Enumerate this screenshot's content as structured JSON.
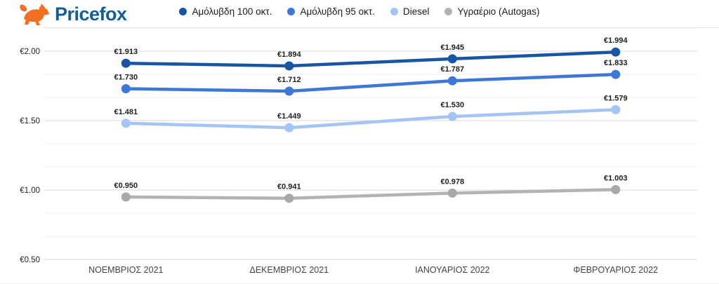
{
  "brand": {
    "name": "Pricefox",
    "name_color": "#135e96",
    "fox_color": "#f36f21"
  },
  "chart_data": {
    "type": "line",
    "categories": [
      "ΝΟΕΜΒΡΙΟΣ 2021",
      "ΔΕΚΕΜΒΡΙΟΣ 2021",
      "ΙΑΝΟΥΑΡΙΟΣ 2022",
      "ΦΕΒΡΟΥΑΡΙΟΣ 2022"
    ],
    "series": [
      {
        "name": "Αμόλυβδη 100 οκτ.",
        "color": "#1855a5",
        "values": [
          1.913,
          1.894,
          1.945,
          1.994
        ],
        "point_labels": [
          "€1.913",
          "€1.894",
          "€1.945",
          "€1.994"
        ]
      },
      {
        "name": "Αμόλυβδη 95 οκτ.",
        "color": "#3d78d8",
        "values": [
          1.73,
          1.712,
          1.787,
          1.833
        ],
        "point_labels": [
          "€1.730",
          "€1.712",
          "€1.787",
          "€1.833"
        ]
      },
      {
        "name": "Diesel",
        "color": "#a4c4f3",
        "values": [
          1.481,
          1.449,
          1.53,
          1.579
        ],
        "point_labels": [
          "€1.481",
          "€1.449",
          "€1.530",
          "€1.579"
        ]
      },
      {
        "name": "Υγραέριο (Autogas)",
        "color": "#b3b3b3",
        "dot_color": "#a8a8a8",
        "values": [
          0.95,
          0.941,
          0.978,
          1.003
        ],
        "point_labels": [
          "€0.950",
          "€0.941",
          "€0.978",
          "€1.003"
        ]
      }
    ],
    "y_ticks": [
      {
        "value": 2.0,
        "label": "€2.00"
      },
      {
        "value": 1.5,
        "label": "€1.50"
      },
      {
        "value": 1.0,
        "label": "€1.00"
      },
      {
        "value": 0.5,
        "label": "€0.50"
      }
    ],
    "y_axis": {
      "min": 0.5,
      "max": 2.1667,
      "gridline_step": 0.1667
    },
    "grid": true,
    "legend_position": "top",
    "currency_prefix": "€",
    "colors": {
      "major_gridline": "#d9d9d9",
      "minor_gridline": "#ececec",
      "point_label_text": "#1f1f1f",
      "y_tick_text": "#222222",
      "x_label_text": "#444444"
    }
  }
}
